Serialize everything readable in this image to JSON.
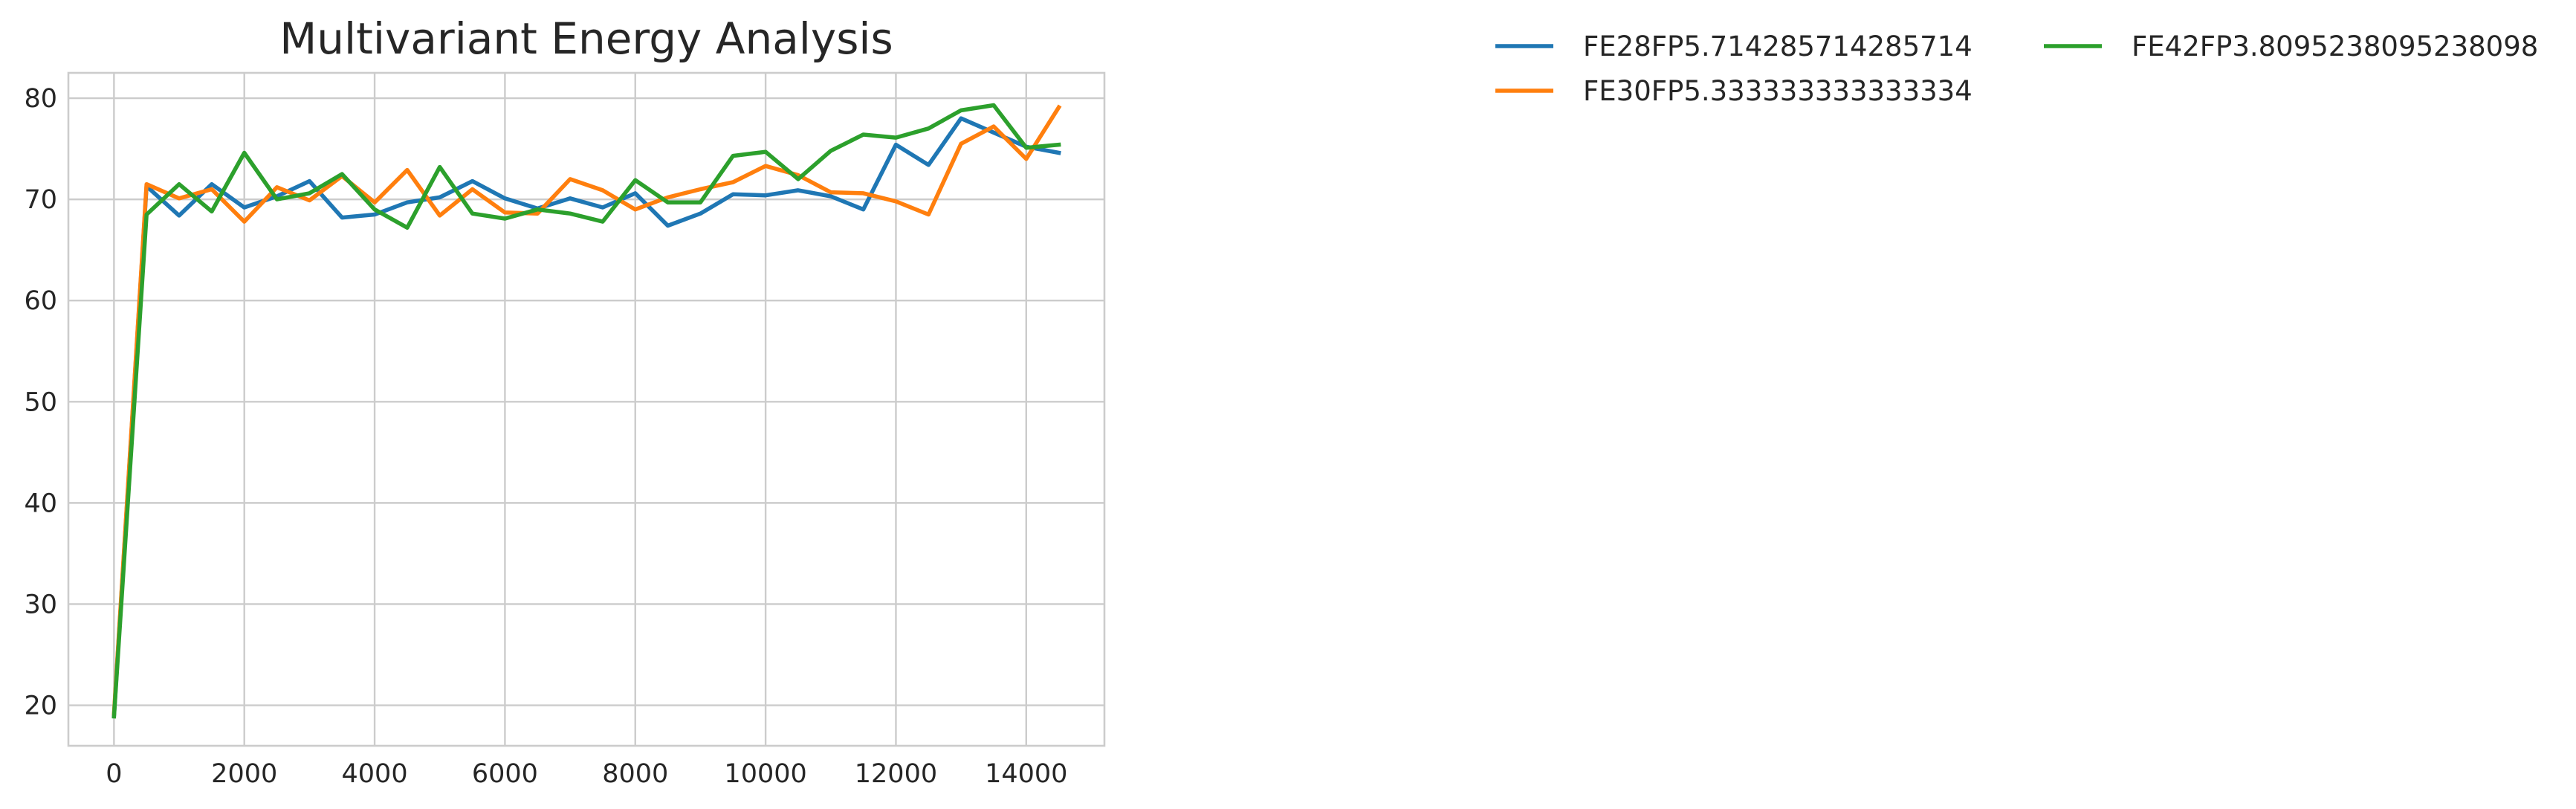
{
  "chart_data": {
    "type": "line",
    "title": "Multivariant Energy Analysis",
    "xlabel": "",
    "ylabel": "",
    "xlim": [
      -700,
      15200
    ],
    "ylim": [
      16,
      82.5
    ],
    "x_ticks": [
      0,
      2000,
      4000,
      6000,
      8000,
      10000,
      12000,
      14000
    ],
    "y_ticks": [
      20,
      30,
      40,
      50,
      60,
      70,
      80
    ],
    "grid": true,
    "legend_position": "outside-top-right",
    "x": [
      0,
      500,
      1000,
      1500,
      2000,
      2500,
      3000,
      3500,
      4000,
      4500,
      5000,
      5500,
      6000,
      6500,
      7000,
      7500,
      8000,
      8500,
      9000,
      9500,
      10000,
      10500,
      11000,
      11500,
      12000,
      12500,
      13000,
      13500,
      14000,
      14500
    ],
    "series": [
      {
        "name": "FE28FP5.714285714285714",
        "color": "#1f77b4",
        "values": [
          19.0,
          71.3,
          68.4,
          71.5,
          69.2,
          70.3,
          71.8,
          68.2,
          68.5,
          69.7,
          70.2,
          71.8,
          70.1,
          69.1,
          70.1,
          69.2,
          70.6,
          67.4,
          68.6,
          70.5,
          70.4,
          70.9,
          70.3,
          69.0,
          75.4,
          73.4,
          78.0,
          76.6,
          75.2,
          74.6
        ]
      },
      {
        "name": "FE30FP5.333333333333334",
        "color": "#ff7f0e",
        "values": [
          19.2,
          71.5,
          70.1,
          71.0,
          67.8,
          71.2,
          69.9,
          72.3,
          69.7,
          72.9,
          68.4,
          71.0,
          68.7,
          68.6,
          72.0,
          70.9,
          69.0,
          70.2,
          71.0,
          71.7,
          73.3,
          72.4,
          70.7,
          70.6,
          69.8,
          68.5,
          75.5,
          77.2,
          74.0,
          79.1
        ]
      },
      {
        "name": "FE42FP3.8095238095238098",
        "color": "#2ca02c",
        "values": [
          18.9,
          68.5,
          71.5,
          68.8,
          74.6,
          70.0,
          70.6,
          72.5,
          69.0,
          67.2,
          73.2,
          68.6,
          68.1,
          69.0,
          68.6,
          67.8,
          71.9,
          69.7,
          69.7,
          74.3,
          74.7,
          72.0,
          74.8,
          76.4,
          76.1,
          77.0,
          78.8,
          79.3,
          75.1,
          75.4
        ]
      }
    ]
  }
}
